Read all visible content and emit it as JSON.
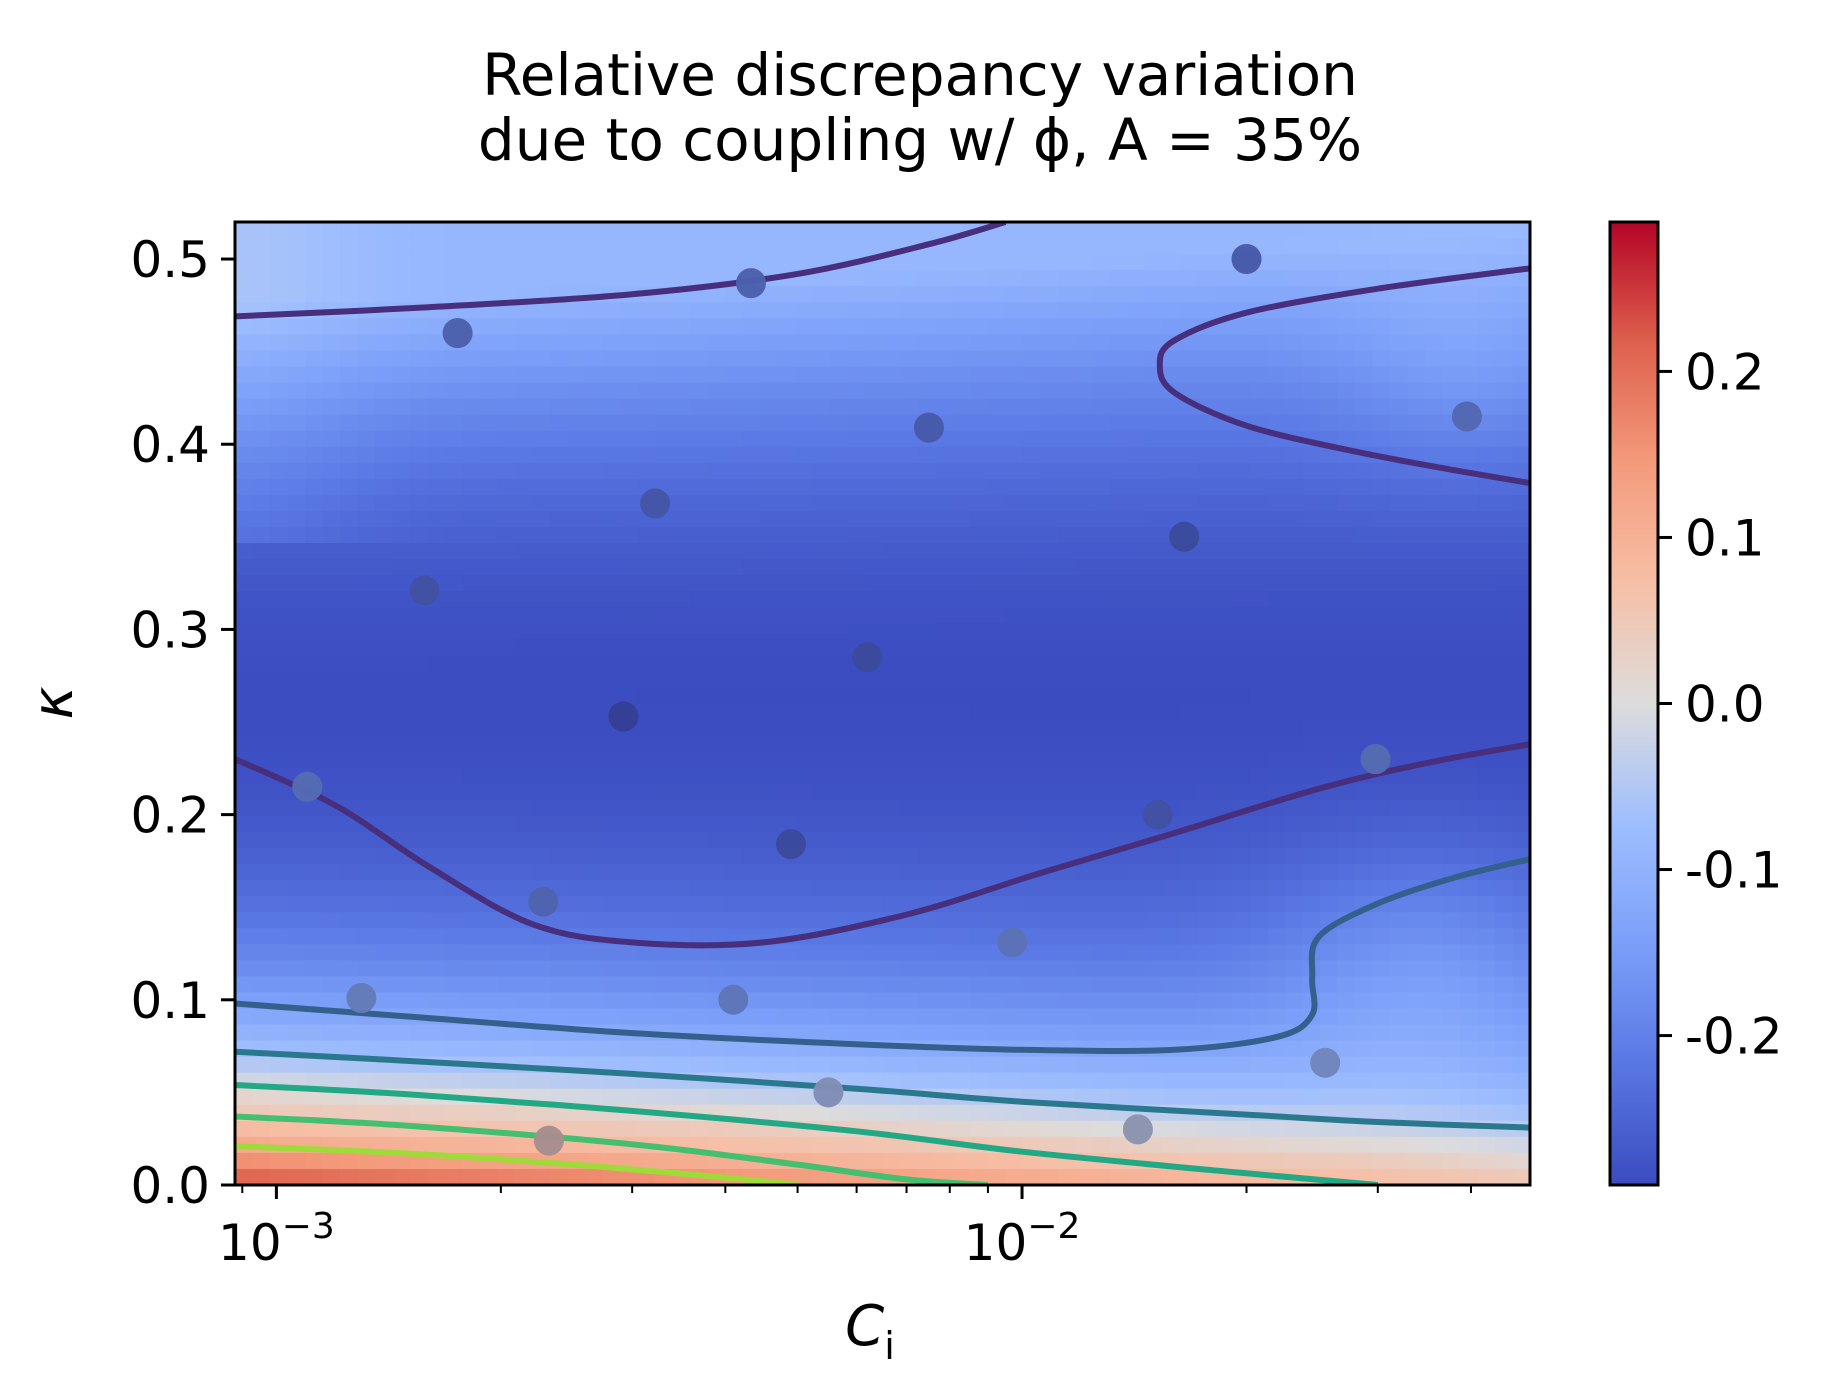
{
  "chart_data": {
    "type": "heatmap",
    "title": "Relative discrepancy variation due to coupling w/ φ, A = 35%",
    "title_lines": [
      "Relative discrepancy variation",
      "due to coupling w/ ϕ, A = 35%"
    ],
    "xlabel": "C_i",
    "xlabel_main": "C",
    "xlabel_sub": "i",
    "ylabel": "κ",
    "xscale": "log",
    "xlim": [
      0.00088,
      0.048
    ],
    "ylim": [
      0.0,
      0.52
    ],
    "xticks": [
      {
        "value": 0.001,
        "base": "10",
        "exp": "−3"
      },
      {
        "value": 0.01,
        "base": "10",
        "exp": "−2"
      }
    ],
    "yticks": [
      {
        "value": 0.0,
        "label": "0.0"
      },
      {
        "value": 0.1,
        "label": "0.1"
      },
      {
        "value": 0.2,
        "label": "0.2"
      },
      {
        "value": 0.3,
        "label": "0.3"
      },
      {
        "value": 0.4,
        "label": "0.4"
      },
      {
        "value": 0.5,
        "label": "0.5"
      }
    ],
    "colorbar": {
      "cmap": "coolwarm",
      "range": [
        -0.29,
        0.29
      ],
      "ticks": [
        {
          "value": 0.2,
          "label": "0.2"
        },
        {
          "value": 0.1,
          "label": "0.1"
        },
        {
          "value": 0.0,
          "label": "0.0"
        },
        {
          "value": -0.1,
          "label": "-0.1"
        },
        {
          "value": -0.2,
          "label": "-0.2"
        }
      ]
    },
    "contours": [
      {
        "level": -0.2,
        "color": "#472f7d",
        "segments": [
          [
            [
              0.00088,
              0.469
            ],
            [
              0.0016,
              0.474
            ],
            [
              0.003,
              0.481
            ],
            [
              0.005,
              0.492
            ],
            [
              0.0075,
              0.508
            ],
            [
              0.0095,
              0.52
            ]
          ],
          [
            [
              0.00088,
              0.23
            ],
            [
              0.0012,
              0.205
            ],
            [
              0.0016,
              0.172
            ],
            [
              0.0022,
              0.141
            ],
            [
              0.003,
              0.131
            ],
            [
              0.0045,
              0.131
            ],
            [
              0.007,
              0.146
            ],
            [
              0.0105,
              0.168
            ],
            [
              0.016,
              0.19
            ],
            [
              0.025,
              0.214
            ],
            [
              0.035,
              0.228
            ],
            [
              0.048,
              0.238
            ]
          ],
          [
            [
              0.048,
              0.495
            ],
            [
              0.03,
              0.484
            ],
            [
              0.02,
              0.471
            ],
            [
              0.016,
              0.456
            ],
            [
              0.0153,
              0.443
            ],
            [
              0.016,
              0.428
            ],
            [
              0.02,
              0.41
            ],
            [
              0.028,
              0.396
            ],
            [
              0.038,
              0.386
            ],
            [
              0.048,
              0.379
            ]
          ]
        ]
      },
      {
        "level": -0.15,
        "color": "#35608d",
        "segments": [
          [
            [
              0.00088,
              0.098
            ],
            [
              0.0015,
              0.091
            ],
            [
              0.003,
              0.082
            ],
            [
              0.006,
              0.076
            ],
            [
              0.01,
              0.073
            ],
            [
              0.016,
              0.073
            ],
            [
              0.022,
              0.08
            ],
            [
              0.0245,
              0.092
            ],
            [
              0.0245,
              0.112
            ],
            [
              0.025,
              0.134
            ],
            [
              0.03,
              0.152
            ],
            [
              0.038,
              0.166
            ],
            [
              0.048,
              0.176
            ]
          ]
        ]
      },
      {
        "level": -0.1,
        "color": "#2a788e",
        "segments": [
          [
            [
              0.00088,
              0.072
            ],
            [
              0.0015,
              0.067
            ],
            [
              0.003,
              0.06
            ],
            [
              0.006,
              0.052
            ],
            [
              0.01,
              0.045
            ],
            [
              0.02,
              0.038
            ],
            [
              0.03,
              0.034
            ],
            [
              0.048,
              0.031
            ]
          ]
        ]
      },
      {
        "level": -0.05,
        "color": "#22a884",
        "segments": [
          [
            [
              0.00088,
              0.054
            ],
            [
              0.0015,
              0.049
            ],
            [
              0.003,
              0.04
            ],
            [
              0.006,
              0.029
            ],
            [
              0.01,
              0.018
            ],
            [
              0.018,
              0.008
            ],
            [
              0.03,
              0.0
            ]
          ]
        ]
      },
      {
        "level": 0.05,
        "color": "#44bf70",
        "segments": [
          [
            [
              0.00088,
              0.037
            ],
            [
              0.0015,
              0.032
            ],
            [
              0.003,
              0.022
            ],
            [
              0.005,
              0.011
            ],
            [
              0.007,
              0.003
            ],
            [
              0.009,
              0.0
            ]
          ]
        ]
      },
      {
        "level": 0.15,
        "color": "#9fda3a",
        "segments": [
          [
            [
              0.00088,
              0.021
            ],
            [
              0.0015,
              0.017
            ],
            [
              0.0025,
              0.011
            ],
            [
              0.004,
              0.004
            ],
            [
              0.005,
              0.0
            ]
          ]
        ]
      }
    ],
    "points": [
      {
        "x": 0.0011,
        "y": 0.215,
        "v": -0.17
      },
      {
        "x": 0.00175,
        "y": 0.46,
        "v": -0.2
      },
      {
        "x": 0.00158,
        "y": 0.321,
        "v": -0.24
      },
      {
        "x": 0.0013,
        "y": 0.101,
        "v": -0.12
      },
      {
        "x": 0.00228,
        "y": 0.153,
        "v": -0.19
      },
      {
        "x": 0.00232,
        "y": 0.024,
        "v": 0.05
      },
      {
        "x": 0.00292,
        "y": 0.253,
        "v": -0.29
      },
      {
        "x": 0.00322,
        "y": 0.368,
        "v": -0.23
      },
      {
        "x": 0.00433,
        "y": 0.487,
        "v": -0.2
      },
      {
        "x": 0.0041,
        "y": 0.1,
        "v": -0.14
      },
      {
        "x": 0.0049,
        "y": 0.184,
        "v": -0.26
      },
      {
        "x": 0.0055,
        "y": 0.05,
        "v": -0.05
      },
      {
        "x": 0.0062,
        "y": 0.285,
        "v": -0.26
      },
      {
        "x": 0.0075,
        "y": 0.409,
        "v": -0.22
      },
      {
        "x": 0.0097,
        "y": 0.131,
        "v": -0.15
      },
      {
        "x": 0.0143,
        "y": 0.03,
        "v": -0.03
      },
      {
        "x": 0.0152,
        "y": 0.2,
        "v": -0.24
      },
      {
        "x": 0.0165,
        "y": 0.35,
        "v": -0.26
      },
      {
        "x": 0.02,
        "y": 0.5,
        "v": -0.22
      },
      {
        "x": 0.0255,
        "y": 0.066,
        "v": -0.08
      },
      {
        "x": 0.0298,
        "y": 0.23,
        "v": -0.17
      },
      {
        "x": 0.0395,
        "y": 0.415,
        "v": -0.18
      }
    ]
  }
}
